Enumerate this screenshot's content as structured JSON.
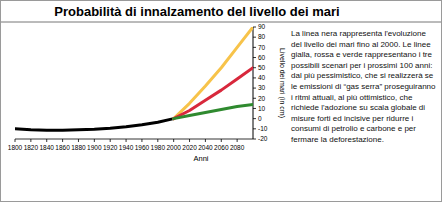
{
  "chart_data": {
    "type": "line",
    "title": "Probabilità di innalzamento del livello dei mari",
    "xlabel": "Anni",
    "ylabel": "Livello dei mari (in cm)",
    "text": "La linea nera rappresenta l'evoluzione del livello dei mari fino al 2000. Le linee gialla, rossa e verde rappresentano i tre possibili scenari per i prossimi 100 anni: dal più pessimistico, che si realizzerà se le emissioni di “gas serra” proseguiranno i ritmi attuali, al più ottimistico, che richiede l'adozione su scala globale di misure forti ed incisive per ridurre i consumi di petrolio e carbone e per fermare la deforestazione.",
    "x": [
      1800,
      1820,
      1840,
      1860,
      1880,
      1900,
      1920,
      1940,
      1960,
      1980,
      2000,
      2020,
      2040,
      2060,
      2080,
      2100
    ],
    "series": [
      {
        "color": "#000000",
        "values": [
          -10,
          -11,
          -11.5,
          -11.5,
          -11,
          -10.5,
          -9.5,
          -8,
          -6,
          -3.5,
          0,
          null,
          null,
          null,
          null,
          null
        ]
      },
      {
        "color": "#f7c34a",
        "values": [
          null,
          null,
          null,
          null,
          null,
          null,
          null,
          null,
          null,
          null,
          0,
          15,
          32,
          50,
          70,
          90
        ]
      },
      {
        "color": "#d8283c",
        "values": [
          null,
          null,
          null,
          null,
          null,
          null,
          null,
          null,
          null,
          null,
          0,
          8,
          18,
          28,
          39,
          50
        ]
      },
      {
        "color": "#2f8a2f",
        "values": [
          null,
          null,
          null,
          null,
          null,
          null,
          null,
          null,
          null,
          null,
          0,
          3,
          6,
          9,
          12,
          14
        ]
      }
    ],
    "xlim": [
      1800,
      2100
    ],
    "ylim": [
      -20,
      90
    ],
    "xticks": [
      1800,
      1820,
      1840,
      1860,
      1880,
      1900,
      1920,
      1940,
      1960,
      1980,
      2000,
      2020,
      2040,
      2060,
      2080
    ],
    "yticks": [
      -20,
      -10,
      0,
      10,
      20,
      30,
      40,
      50,
      60,
      70,
      80,
      90
    ],
    "grid": false
  }
}
